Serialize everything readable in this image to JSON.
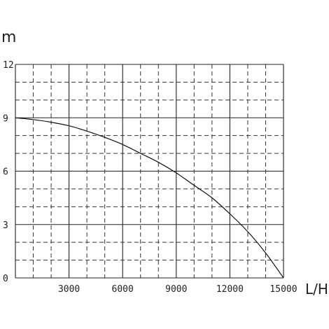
{
  "chart_data": {
    "type": "line",
    "xlabel": "L/H",
    "ylabel": "m",
    "xlim": [
      0,
      15000
    ],
    "ylim": [
      0,
      12
    ],
    "x_ticks": [
      "3000",
      "6000",
      "9000",
      "12000",
      "15000"
    ],
    "y_ticks": [
      "0",
      "3",
      "6",
      "9",
      "12"
    ],
    "grid": "major solid every 3000 L/H and 3 m, minor dashed every 1000 L/H and 1 m",
    "series": [
      {
        "x": [
          0,
          1000,
          2000,
          3000,
          4000,
          5000,
          6000,
          7000,
          8000,
          9000,
          10000,
          11000,
          12000,
          13000,
          14000,
          15000
        ],
        "values": [
          9.0,
          8.9,
          8.75,
          8.55,
          8.25,
          7.9,
          7.5,
          7.0,
          6.5,
          5.9,
          5.2,
          4.5,
          3.6,
          2.6,
          1.4,
          0.0
        ]
      }
    ]
  }
}
